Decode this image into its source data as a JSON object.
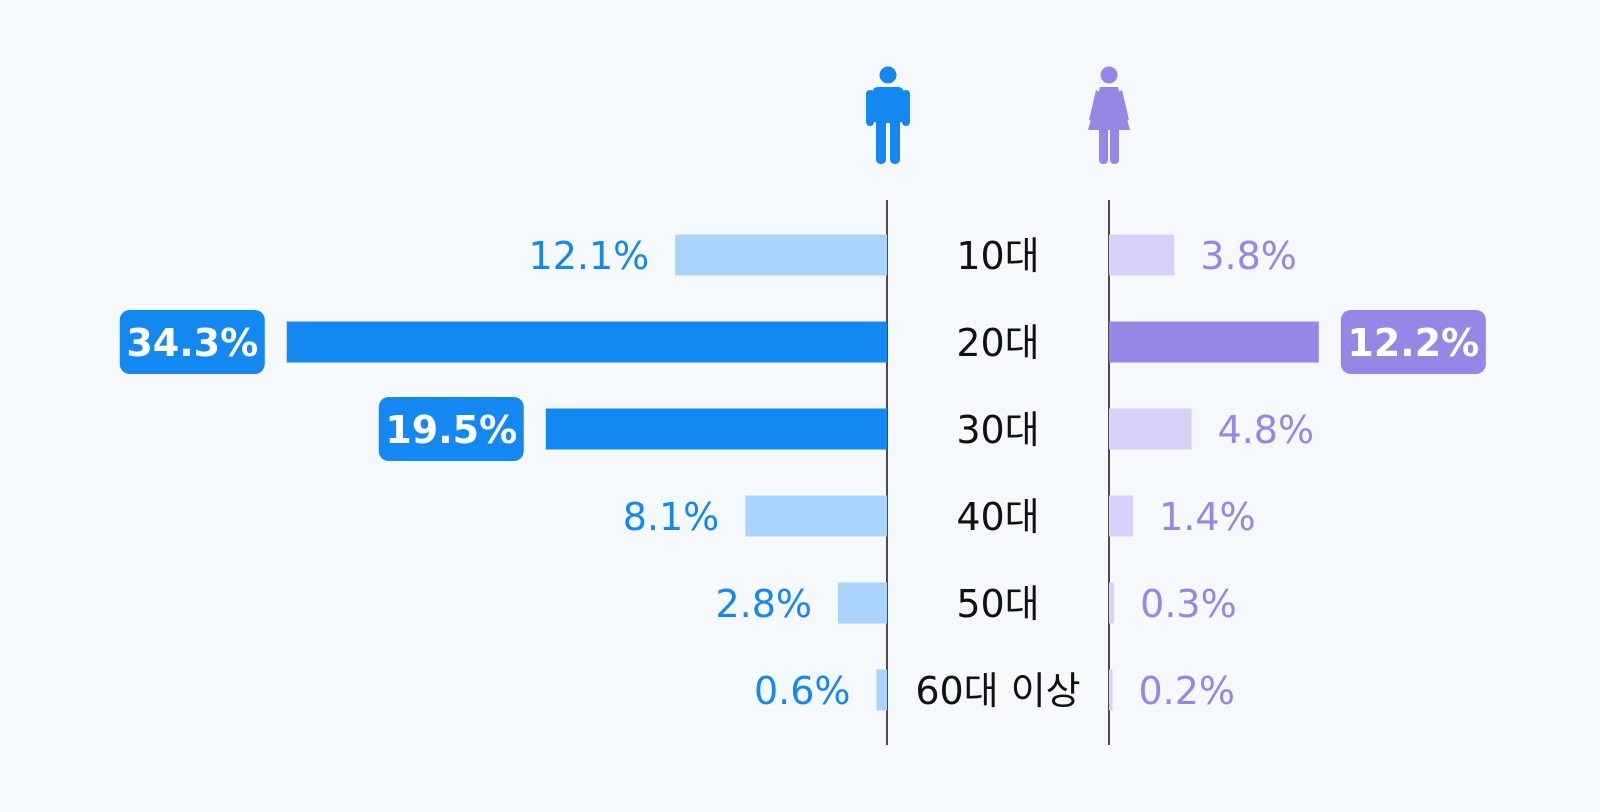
{
  "icons": {
    "male": {
      "name": "male-icon",
      "color": "#1388f0"
    },
    "female": {
      "name": "female-icon",
      "color": "#9487e6"
    }
  },
  "colors": {
    "male_strong": "#1388f0",
    "male_light": "#a9d3fa",
    "female_strong": "#9487e6",
    "female_light": "#d5d1f8",
    "category_text": "#111111",
    "divider": "#111111",
    "badge_text": "#ffffff"
  },
  "chart_data": {
    "type": "bar",
    "orientation": "horizontal",
    "layout": "population-pyramid",
    "categories": [
      "10대",
      "20대",
      "30대",
      "40대",
      "50대",
      "60대 이상"
    ],
    "series": [
      {
        "side": "left",
        "values": [
          12.1,
          34.3,
          19.5,
          8.1,
          2.8,
          0.6
        ],
        "labels": [
          "12.1%",
          "34.3%",
          "19.5%",
          "8.1%",
          "2.8%",
          "0.6%"
        ],
        "highlighted": [
          false,
          true,
          true,
          false,
          false,
          false
        ]
      },
      {
        "side": "right",
        "values": [
          3.8,
          12.2,
          4.8,
          1.4,
          0.3,
          0.2
        ],
        "labels": [
          "3.8%",
          "12.2%",
          "4.8%",
          "1.4%",
          "0.3%",
          "0.2%"
        ],
        "highlighted": [
          false,
          true,
          false,
          false,
          false,
          false
        ]
      }
    ],
    "unit": "%",
    "legend": "none",
    "grid": false
  }
}
